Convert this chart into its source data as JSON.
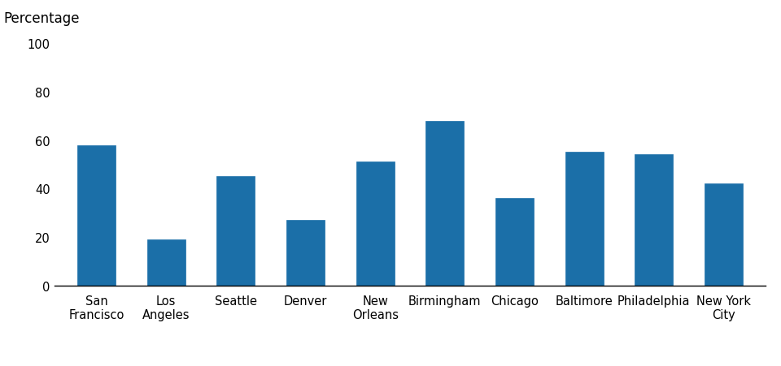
{
  "categories": [
    "San\nFrancisco",
    "Los\nAngeles",
    "Seattle",
    "Denver",
    "New\nOrleans",
    "Birmingham",
    "Chicago",
    "Baltimore",
    "Philadelphia",
    "New York\nCity"
  ],
  "values": [
    58,
    19,
    45,
    27,
    51,
    68,
    36,
    55,
    54,
    42
  ],
  "bar_color": "#1B6FA8",
  "bar_edge_color": "#1B6FA8",
  "ylabel": "Percentage",
  "ylim": [
    0,
    100
  ],
  "yticks": [
    0,
    20,
    40,
    60,
    80,
    100
  ],
  "background_color": "#ffffff",
  "ylabel_fontsize": 12,
  "tick_fontsize": 10.5
}
